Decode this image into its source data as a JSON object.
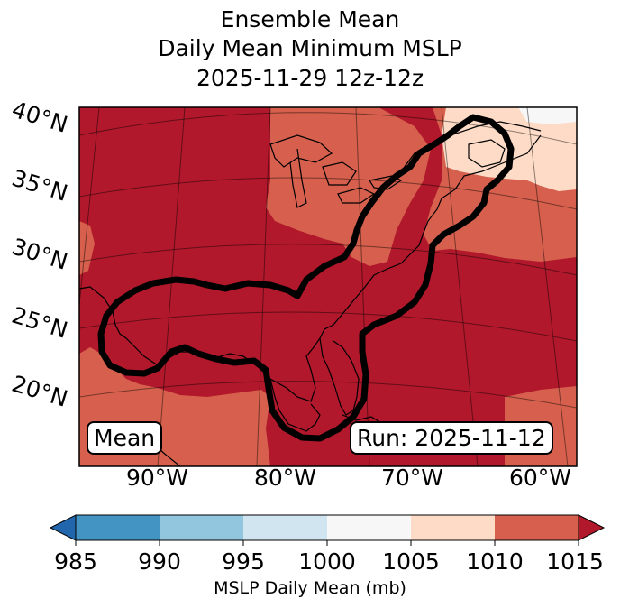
{
  "title": {
    "line1": "Ensemble Mean",
    "line2": "Daily Mean Minimum MSLP",
    "line3": "2025-11-29 12z-12z"
  },
  "map": {
    "lat_labels": [
      "40°N",
      "35°N",
      "30°N",
      "25°N",
      "20°N"
    ],
    "lon_labels": [
      "90°W",
      "80°W",
      "70°W",
      "60°W"
    ],
    "mean_label": "Mean",
    "run_label": "Run: 2025-11-12",
    "colors": {
      "below_1010_and_up": "#b2182b",
      "band_1005_1010": "#d6604d",
      "band_1000_1005": "#fddbc7",
      "band_995_1000": "#f7f7f7",
      "contour": "#000000"
    }
  },
  "colorbar": {
    "label": "MSLP Daily Mean (mb)",
    "ticks": [
      "985",
      "990",
      "995",
      "1000",
      "1005",
      "1010",
      "1015"
    ],
    "colors": [
      "#2166ac",
      "#4393c3",
      "#92c5de",
      "#d1e5f0",
      "#f7f7f7",
      "#fddbc7",
      "#d6604d",
      "#b2182b"
    ]
  }
}
